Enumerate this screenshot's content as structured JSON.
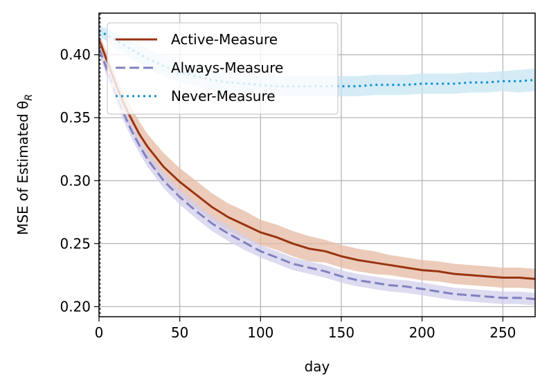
{
  "chart_data": {
    "type": "line",
    "title": "",
    "xlabel": "day",
    "ylabel": "MSE of Estimated θ",
    "ylabel_subscript": "R",
    "xlim": [
      0,
      270
    ],
    "ylim": [
      0.192,
      0.433
    ],
    "xticks": [
      0,
      50,
      100,
      150,
      200,
      250
    ],
    "yticks": [
      0.2,
      0.25,
      0.3,
      0.35,
      0.4
    ],
    "xtick_labels": [
      "0",
      "50",
      "100",
      "150",
      "200",
      "250"
    ],
    "ytick_labels": [
      "0.20",
      "0.25",
      "0.30",
      "0.35",
      "0.40"
    ],
    "grid": true,
    "legend_position": "top-left",
    "vline": {
      "x": 0,
      "style": "dotted",
      "color": "#555555"
    },
    "series": [
      {
        "name": "Active-Measure",
        "color": "#993311",
        "band_color": "#e5b9a3",
        "style": "solid",
        "x": [
          0,
          5,
          10,
          15,
          20,
          25,
          30,
          40,
          50,
          60,
          70,
          80,
          90,
          100,
          110,
          120,
          130,
          140,
          150,
          160,
          170,
          180,
          190,
          200,
          210,
          220,
          230,
          240,
          250,
          260,
          270
        ],
        "y": [
          0.412,
          0.395,
          0.378,
          0.362,
          0.349,
          0.337,
          0.327,
          0.311,
          0.299,
          0.289,
          0.279,
          0.271,
          0.265,
          0.259,
          0.255,
          0.25,
          0.246,
          0.244,
          0.24,
          0.237,
          0.235,
          0.233,
          0.231,
          0.229,
          0.228,
          0.226,
          0.225,
          0.224,
          0.223,
          0.223,
          0.222
        ],
        "band": [
          0.005,
          0.006,
          0.007,
          0.008,
          0.009,
          0.01,
          0.01,
          0.011,
          0.011,
          0.011,
          0.011,
          0.011,
          0.011,
          0.01,
          0.01,
          0.01,
          0.01,
          0.009,
          0.009,
          0.009,
          0.009,
          0.008,
          0.008,
          0.008,
          0.008,
          0.008,
          0.008,
          0.008,
          0.008,
          0.008,
          0.008
        ]
      },
      {
        "name": "Always-Measure",
        "color": "#8080c0",
        "band_color": "#d2cfeb",
        "style": "dashed",
        "x": [
          0,
          5,
          10,
          15,
          20,
          25,
          30,
          40,
          50,
          60,
          70,
          80,
          90,
          100,
          110,
          120,
          130,
          140,
          150,
          160,
          170,
          180,
          190,
          200,
          210,
          220,
          230,
          240,
          250,
          260,
          270
        ],
        "y": [
          0.405,
          0.388,
          0.37,
          0.354,
          0.34,
          0.328,
          0.317,
          0.3,
          0.287,
          0.276,
          0.266,
          0.258,
          0.251,
          0.244,
          0.239,
          0.234,
          0.231,
          0.228,
          0.224,
          0.221,
          0.219,
          0.217,
          0.216,
          0.214,
          0.212,
          0.21,
          0.209,
          0.208,
          0.207,
          0.207,
          0.206
        ],
        "band": [
          0.005,
          0.005,
          0.006,
          0.006,
          0.006,
          0.006,
          0.006,
          0.006,
          0.006,
          0.006,
          0.006,
          0.006,
          0.006,
          0.005,
          0.005,
          0.005,
          0.005,
          0.005,
          0.005,
          0.005,
          0.005,
          0.005,
          0.005,
          0.005,
          0.005,
          0.005,
          0.005,
          0.005,
          0.005,
          0.005,
          0.005
        ]
      },
      {
        "name": "Never-Measure",
        "color": "#0f8fcf",
        "band_color": "#c7e5f4",
        "style": "dotted",
        "x": [
          0,
          10,
          20,
          30,
          40,
          50,
          60,
          70,
          80,
          90,
          100,
          110,
          120,
          130,
          140,
          150,
          160,
          170,
          180,
          190,
          200,
          210,
          220,
          230,
          240,
          250,
          260,
          270
        ],
        "y": [
          0.419,
          0.412,
          0.404,
          0.397,
          0.391,
          0.386,
          0.383,
          0.38,
          0.378,
          0.377,
          0.376,
          0.375,
          0.375,
          0.375,
          0.375,
          0.375,
          0.375,
          0.376,
          0.376,
          0.376,
          0.377,
          0.377,
          0.377,
          0.378,
          0.378,
          0.379,
          0.379,
          0.38
        ],
        "band": [
          0.004,
          0.006,
          0.007,
          0.008,
          0.008,
          0.008,
          0.008,
          0.008,
          0.008,
          0.008,
          0.008,
          0.008,
          0.008,
          0.008,
          0.008,
          0.008,
          0.008,
          0.008,
          0.008,
          0.008,
          0.008,
          0.008,
          0.008,
          0.008,
          0.008,
          0.008,
          0.009,
          0.009
        ]
      }
    ]
  }
}
